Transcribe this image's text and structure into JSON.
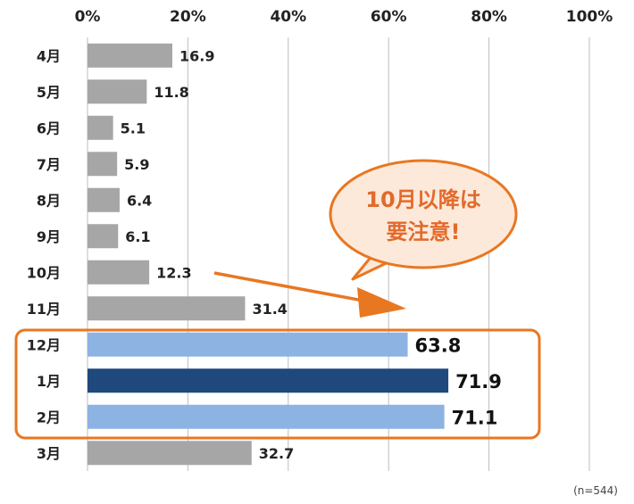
{
  "chart_data": {
    "type": "bar",
    "orientation": "horizontal",
    "categories": [
      "4月",
      "5月",
      "6月",
      "7月",
      "8月",
      "9月",
      "10月",
      "11月",
      "12月",
      "1月",
      "2月",
      "3月"
    ],
    "values": [
      16.9,
      11.8,
      5.1,
      5.9,
      6.4,
      6.1,
      12.3,
      31.4,
      63.8,
      71.9,
      71.1,
      32.7
    ],
    "value_labels": [
      "16.9",
      "11.8",
      "5.1",
      "5.9",
      "6.4",
      "6.1",
      "12.3",
      "31.4",
      "63.8",
      "71.9",
      "71.1",
      "32.7"
    ],
    "highlight": [
      "12月",
      "1月",
      "2月"
    ],
    "xticks": [
      "0%",
      "20%",
      "40%",
      "60%",
      "80%",
      "100%"
    ],
    "xlim": [
      0,
      100
    ],
    "grid": true,
    "colors": {
      "default": "#a6a6a6",
      "highlight_light": "#8db3e2",
      "highlight_dark": "#1f497d",
      "accent": "#e87722"
    }
  },
  "callout": {
    "line1": "10月以降は",
    "line2": "要注意!"
  },
  "note": "(n=544)"
}
